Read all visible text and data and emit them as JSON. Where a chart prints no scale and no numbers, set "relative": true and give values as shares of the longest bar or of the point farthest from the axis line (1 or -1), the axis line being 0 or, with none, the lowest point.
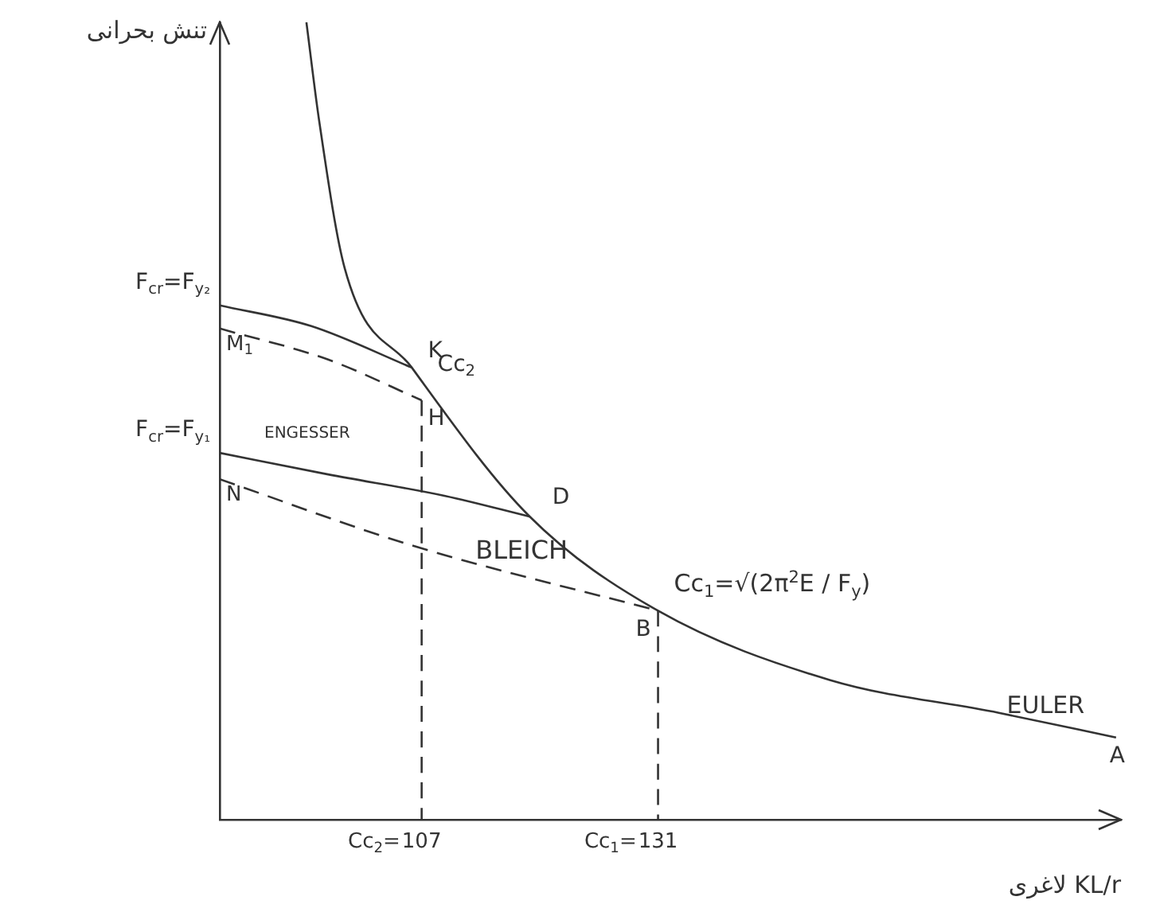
{
  "chart_data": {
    "type": "line",
    "relative": true,
    "ylabel": "تنش بحرانی",
    "xlabel": "لاغری KL/r",
    "xlim": [
      86.5,
      178
    ],
    "xticks": [
      107,
      131
    ],
    "grid": false,
    "legend": false,
    "marker": "none",
    "series": [
      {
        "name": "EULER",
        "color": "#333333",
        "line_style": "solid",
        "x": [
          95.3,
          96.6,
          99.2,
          106,
          117.9,
          131,
          148.5,
          165.6,
          177.5
        ],
        "values": [
          1,
          0.876,
          0.691,
          0.567,
          0.381,
          0.262,
          0.175,
          0.134,
          0.103
        ]
      },
      {
        "name": "ENGESSER",
        "color": "#333333",
        "line_style": "solid",
        "x": [
          86.5,
          97.5,
          109.4,
          118
        ],
        "values": [
          0.46,
          0.433,
          0.406,
          0.38
        ]
      },
      {
        "name": "BLEICH",
        "color": "#333333",
        "line_style": "dashed",
        "x": [
          86.5,
          106,
          131
        ],
        "values": [
          0.427,
          0.344,
          0.262
        ]
      },
      {
        "color": "#333333",
        "line_style": "solid",
        "x": [
          86.5,
          95.8,
          106
        ],
        "values": [
          0.645,
          0.619,
          0.567
        ]
      },
      {
        "color": "#333333",
        "line_style": "dashed",
        "x": [
          86.5,
          97.5,
          107
        ],
        "values": [
          0.616,
          0.577,
          0.526
        ]
      },
      {
        "color": "#333333",
        "line_style": "dashed",
        "x": [
          107,
          107
        ],
        "values": [
          0.526,
          0
        ]
      },
      {
        "color": "#333333",
        "line_style": "dashed",
        "x": [
          131,
          131
        ],
        "values": [
          0.262,
          0
        ]
      }
    ],
    "annotations": [
      "F$_{cr}$=F$_{y₂}$",
      "F$_{cr}$=F$_{y₁}$",
      {
        "text": "Cc$_{2}$=",
        "x": 107,
        "y": 0
      },
      {
        "text": "Cc$_{1}$=",
        "x": 131,
        "y": 0
      },
      {
        "text": "K",
        "x": 107,
        "y": 0.567
      },
      {
        "text": "H",
        "x": 107,
        "y": 0.526
      },
      {
        "text": "Cc$_{2}$",
        "x": 107,
        "y": 0.55
      },
      {
        "text": "M$_{1}$",
        "x": 86.5,
        "y": 0.616
      },
      {
        "text": "N",
        "x": 86.5,
        "y": 0.427
      },
      {
        "text": "D",
        "x": 118,
        "y": 0.38
      },
      {
        "text": "B",
        "x": 131,
        "y": 0.262
      },
      {
        "text": "Cc$_{1}$=√(2π$^{2}$E / F$_{y}$)",
        "x": 131,
        "y": 0.262
      },
      {
        "text": "A",
        "x": 177.5,
        "y": 0.103
      }
    ]
  }
}
